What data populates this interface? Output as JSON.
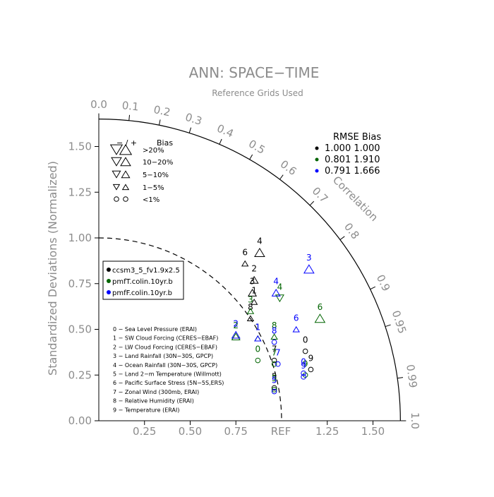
{
  "chart_data": {
    "type": "scatter",
    "subtype": "taylor-diagram",
    "title": "ANN: SPACE−TIME",
    "subtitle": "Reference Grids Used",
    "ylabel": "Standardized Deviations (Normalized)",
    "correlation_label": "Correlation",
    "ref_label": "REF",
    "x_ticks": [
      "0.25",
      "0.50",
      "0.75",
      "1.25",
      "1.50"
    ],
    "y_ticks": [
      "0.00",
      "0.25",
      "0.50",
      "0.75",
      "1.00",
      "1.25",
      "1.50"
    ],
    "corr_ticks": [
      "0.0",
      "0.1",
      "0.2",
      "0.3",
      "0.4",
      "0.5",
      "0.6",
      "0.7",
      "0.8",
      "0.9",
      "0.95",
      "0.99",
      "1.0"
    ],
    "max_std": 1.65,
    "ref_std": 1.0,
    "bias_legend": {
      "header_sign": "− / +",
      "header_label": "Bias",
      "rows": [
        ">20%",
        "10−20%",
        "5−10%",
        "1−5%",
        "<1%"
      ]
    },
    "rmse_table": {
      "header": "RMSE Bias",
      "rows": [
        {
          "values": "1.000 1.000",
          "color": "#000000"
        },
        {
          "values": "0.801 1.910",
          "color": "#006400"
        },
        {
          "values": "0.791 1.666",
          "color": "#0000ff"
        }
      ]
    },
    "cases": [
      {
        "name": "ccsm3_5_fv1.9x2.5",
        "color": "#000000"
      },
      {
        "name": "pmfT.colin.10yr.b",
        "color": "#006400"
      },
      {
        "name": "pmfF.colin.10yr.b",
        "color": "#0000ff"
      }
    ],
    "variables": [
      "0 − Sea Level Pressure (ERAI)",
      "1 − SW Cloud Forcing (CERES−EBAF)",
      "2 − LW Cloud Forcing (CERES−EBAF)",
      "3 − Land Rainfall (30N−30S, GPCP)",
      "4 − Ocean Rainfall (30N−30S, GPCP)",
      "5 − Land 2−m Temperature (Willmott)",
      "6 − Pacific Surface Stress (5N−5S,ERS)",
      "7 − Zonal Wind (300mb, ERAI)",
      "8 − Relative Humidity (ERAI)",
      "9 − Temperature (ERAI)"
    ],
    "series": [
      {
        "name": "ccsm3_5_fv1.9x2.5",
        "color": "#000000",
        "style": "boxed",
        "points": [
          {
            "label": "0",
            "x": 1.13,
            "y": 0.38,
            "marker": "circle",
            "bias_size": 1
          },
          {
            "label": "1",
            "x": 0.85,
            "y": 0.65,
            "marker": "tri-up",
            "bias_size": 1
          },
          {
            "label": "2",
            "x": 0.85,
            "y": 0.77,
            "marker": "tri-up",
            "bias_size": 2
          },
          {
            "label": "3",
            "x": 0.84,
            "y": 0.7,
            "marker": "tri-up",
            "bias_size": 2
          },
          {
            "label": "4",
            "x": 0.88,
            "y": 0.92,
            "marker": "tri-up",
            "bias_size": 3
          },
          {
            "label": "5",
            "x": 0.96,
            "y": 0.18,
            "marker": "circle",
            "bias_size": 1
          },
          {
            "label": "6",
            "x": 0.8,
            "y": 0.86,
            "marker": "tri-up",
            "bias_size": 1
          },
          {
            "label": "7",
            "x": 0.96,
            "y": 0.33,
            "marker": "circle",
            "bias_size": 1
          },
          {
            "label": "8",
            "x": 0.83,
            "y": 0.56,
            "marker": "tri-up",
            "bias_size": 1
          },
          {
            "label": "9",
            "x": 1.16,
            "y": 0.28,
            "marker": "circle",
            "bias_size": 1
          }
        ]
      },
      {
        "name": "pmfT.colin.10yr.b",
        "color": "#006400",
        "style": "boxed",
        "points": [
          {
            "label": "0",
            "x": 0.87,
            "y": 0.33,
            "marker": "circle",
            "bias_size": 1
          },
          {
            "label": "1",
            "x": 0.87,
            "y": 0.45,
            "marker": "tri-up",
            "bias_size": 1
          },
          {
            "label": "2",
            "x": 0.75,
            "y": 0.46,
            "marker": "tri-up",
            "bias_size": 2
          },
          {
            "label": "3",
            "x": 0.83,
            "y": 0.6,
            "marker": "tri-up",
            "bias_size": 1
          },
          {
            "label": "4",
            "x": 0.99,
            "y": 0.67,
            "marker": "tri-down",
            "bias_size": 2
          },
          {
            "label": "5",
            "x": 0.96,
            "y": 0.17,
            "marker": "circle",
            "bias_size": 1
          },
          {
            "label": "6",
            "x": 1.21,
            "y": 0.56,
            "marker": "tri-up",
            "bias_size": 3
          },
          {
            "label": "7",
            "x": 0.96,
            "y": 0.31,
            "marker": "circle",
            "bias_size": 1
          },
          {
            "label": "8",
            "x": 0.96,
            "y": 0.46,
            "marker": "tri-up",
            "bias_size": 1
          },
          {
            "label": "9",
            "x": 1.13,
            "y": 0.25,
            "marker": "circle",
            "bias_size": 1
          }
        ]
      },
      {
        "name": "pmfF.colin.10yr.b",
        "color": "#0000ff",
        "style": "boxed",
        "points": [
          {
            "label": "0",
            "x": 1.12,
            "y": 0.26,
            "marker": "circle",
            "bias_size": 1
          },
          {
            "label": "1",
            "x": 0.87,
            "y": 0.45,
            "marker": "tri-up",
            "bias_size": 1
          },
          {
            "label": "2",
            "x": 0.75,
            "y": 0.47,
            "marker": "tri-up",
            "bias_size": 2
          },
          {
            "label": "3",
            "x": 1.15,
            "y": 0.83,
            "marker": "tri-up",
            "bias_size": 3
          },
          {
            "label": "4",
            "x": 0.97,
            "y": 0.7,
            "marker": "tri-up",
            "bias_size": 2
          },
          {
            "label": "5",
            "x": 0.96,
            "y": 0.16,
            "marker": "circle",
            "bias_size": 1
          },
          {
            "label": "6",
            "x": 1.08,
            "y": 0.5,
            "marker": "tri-up",
            "bias_size": 1
          },
          {
            "label": "7",
            "x": 0.98,
            "y": 0.31,
            "marker": "circle",
            "bias_size": 1
          },
          {
            "label": "8",
            "x": 0.96,
            "y": 0.43,
            "marker": "circle",
            "bias_size": 1
          },
          {
            "label": "9",
            "x": 1.12,
            "y": 0.24,
            "marker": "circle",
            "bias_size": 1
          }
        ]
      }
    ]
  }
}
